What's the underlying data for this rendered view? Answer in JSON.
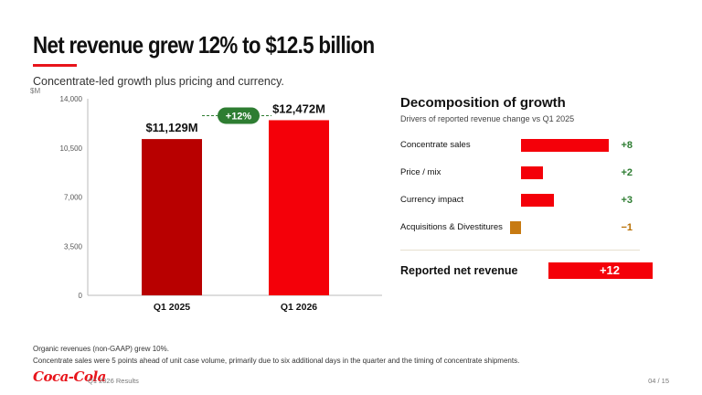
{
  "slide": {
    "title": "Net revenue grew 12% to $12.5 billion",
    "subtitle": "Concentrate-led growth plus pricing and currency.",
    "footnotes": [
      "Organic revenues (non-GAAP) grew 10%.",
      "Concentrate sales were 5 points ahead of unit case volume, primarily due to six additional days in the quarter and the timing of concentrate shipments."
    ],
    "logo_text": "Coca-Cola",
    "footer_doc": "Q1 2026 Results",
    "page_number": "04 / 15"
  },
  "colors": {
    "brand_red": "#e8141b",
    "bar_dark_red": "#b80000",
    "bar_red": "#f40009",
    "growth_green": "#2e7d32",
    "negative_orange": "#b86e00",
    "negative_bar": "#c77a12"
  },
  "chart_data": [
    {
      "type": "bar",
      "unit_label": "$M",
      "categories": [
        "Q1 2025",
        "Q1 2026"
      ],
      "values": [
        11129,
        12472
      ],
      "value_labels": [
        "$11,129M",
        "$12,472M"
      ],
      "ylim": [
        0,
        14000
      ],
      "yticks": [
        0,
        3500,
        7000,
        10500,
        14000
      ],
      "ytick_labels": [
        "0",
        "3,500",
        "7,000",
        "10,500",
        "14,000"
      ],
      "growth_annotation": "+12%",
      "grid": false
    },
    {
      "type": "bar",
      "orientation": "horizontal",
      "title": "Decomposition of growth",
      "subtitle": "Drivers of reported revenue change vs Q1 2025",
      "categories": [
        "Concentrate sales",
        "Price / mix",
        "Currency impact",
        "Acquisitions & Divestitures"
      ],
      "values": [
        8,
        2,
        3,
        -1
      ],
      "value_labels": [
        "+8",
        "+2",
        "+3",
        "−1"
      ],
      "total": {
        "label": "Reported net revenue",
        "value": 12,
        "value_label": "+12"
      }
    }
  ]
}
